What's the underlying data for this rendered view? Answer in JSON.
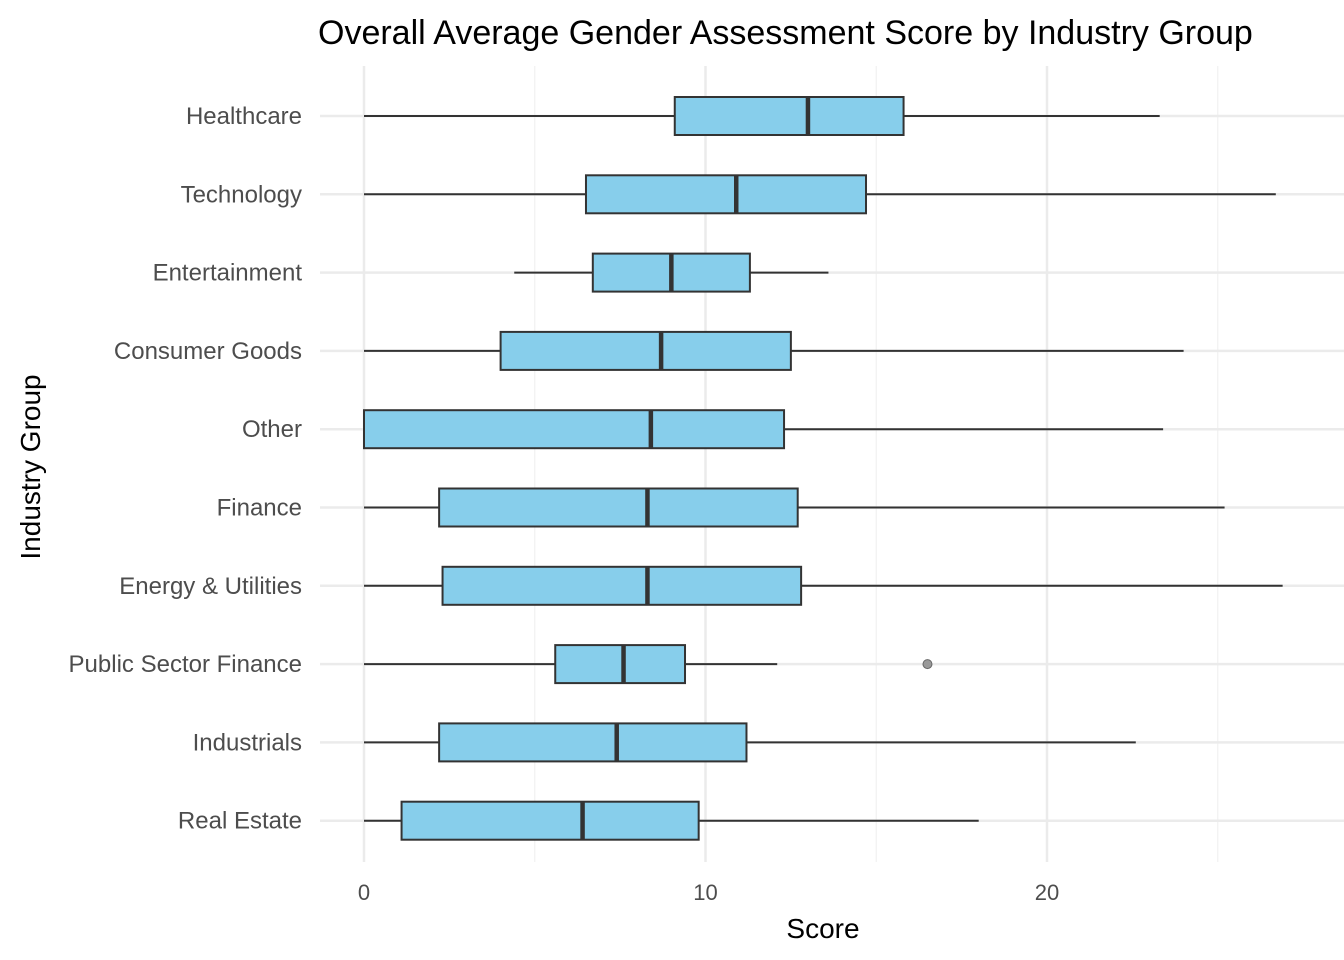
{
  "chart_data": {
    "type": "boxplot",
    "orientation": "horizontal",
    "title": "Overall Average Gender Assessment Score by Industry Group",
    "xlabel": "Score",
    "ylabel": "Industry Group",
    "xlim": [
      0,
      28
    ],
    "x_ticks": [
      0,
      10,
      20
    ],
    "x_tick_labels": [
      "0",
      "10",
      "20"
    ],
    "grid": true,
    "box_fill": "#87ceeb",
    "box_stroke": "#333333",
    "outlier_color": "#999999",
    "categories": [
      "Healthcare",
      "Technology",
      "Entertainment",
      "Consumer Goods",
      "Other",
      "Finance",
      "Energy & Utilities",
      "Public Sector Finance",
      "Industrials",
      "Real Estate"
    ],
    "boxes": [
      {
        "category": "Healthcare",
        "min": 0,
        "q1": 9.1,
        "median": 13.0,
        "q3": 15.8,
        "max": 23.3,
        "outliers": []
      },
      {
        "category": "Technology",
        "min": 0,
        "q1": 6.5,
        "median": 10.9,
        "q3": 14.7,
        "max": 26.7,
        "outliers": []
      },
      {
        "category": "Entertainment",
        "min": 4.4,
        "q1": 6.7,
        "median": 9.0,
        "q3": 11.3,
        "max": 13.6,
        "outliers": []
      },
      {
        "category": "Consumer Goods",
        "min": 0,
        "q1": 4.0,
        "median": 8.7,
        "q3": 12.5,
        "max": 24.0,
        "outliers": []
      },
      {
        "category": "Other",
        "min": 0,
        "q1": 0,
        "median": 8.4,
        "q3": 12.3,
        "max": 23.4,
        "outliers": []
      },
      {
        "category": "Finance",
        "min": 0,
        "q1": 2.2,
        "median": 8.3,
        "q3": 12.7,
        "max": 25.2,
        "outliers": []
      },
      {
        "category": "Energy & Utilities",
        "min": 0,
        "q1": 2.3,
        "median": 8.3,
        "q3": 12.8,
        "max": 26.9,
        "outliers": []
      },
      {
        "category": "Public Sector Finance",
        "min": 0,
        "q1": 5.6,
        "median": 7.6,
        "q3": 9.4,
        "max": 12.1,
        "outliers": [
          16.5
        ]
      },
      {
        "category": "Industrials",
        "min": 0,
        "q1": 2.2,
        "median": 7.4,
        "q3": 11.2,
        "max": 22.6,
        "outliers": []
      },
      {
        "category": "Real Estate",
        "min": 0,
        "q1": 1.1,
        "median": 6.4,
        "q3": 9.8,
        "max": 18.0,
        "outliers": []
      }
    ]
  }
}
